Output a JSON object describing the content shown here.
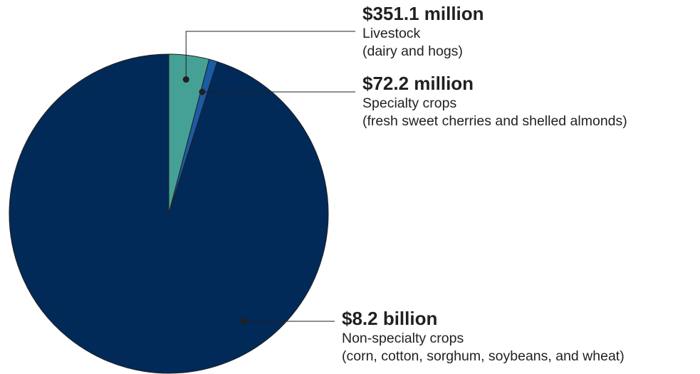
{
  "chart_data": {
    "type": "pie",
    "start_angle_deg": 0,
    "direction": "clockwise",
    "slices": [
      {
        "key": "livestock",
        "value_label": "$351.1 million",
        "label": "Livestock",
        "detail": "(dairy and hogs)",
        "value": 351.1,
        "unit": "million USD",
        "color": "#45a196"
      },
      {
        "key": "specialty",
        "value_label": "$72.2 million",
        "label": "Specialty crops",
        "detail": "(fresh sweet cherries and shelled almonds)",
        "value": 72.2,
        "unit": "million USD",
        "color": "#1a5ba6"
      },
      {
        "key": "nonspecialty",
        "value_label": "$8.2 billion",
        "label": "Non-specialty crops",
        "detail": "(corn, cotton, sorghum, soybeans, and wheat)",
        "value": 8200,
        "unit": "million USD",
        "color": "#012a58"
      }
    ],
    "legend": "none"
  }
}
